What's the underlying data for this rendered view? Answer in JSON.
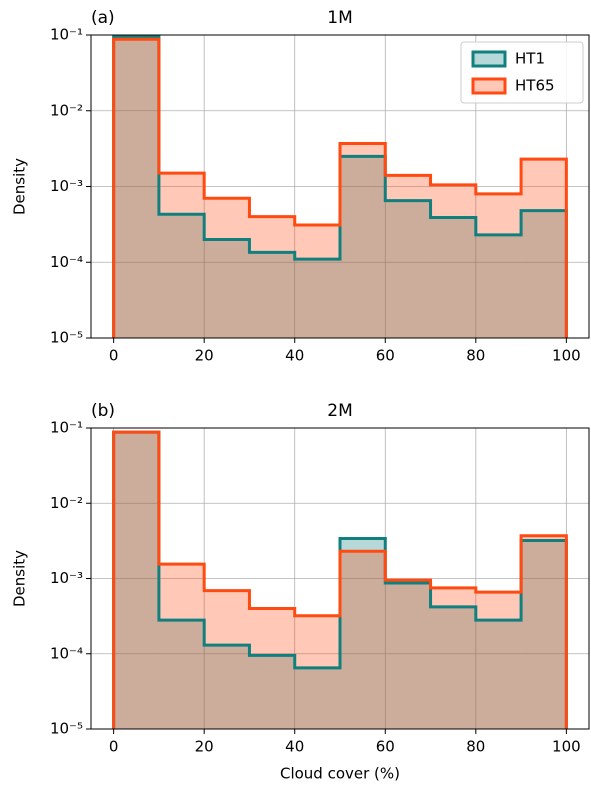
{
  "chart_data": [
    {
      "type": "histogram",
      "title": "1M",
      "annotation": "(a)",
      "ylabel": "Density",
      "bins": [
        0,
        10,
        20,
        30,
        40,
        50,
        60,
        70,
        80,
        90,
        100
      ],
      "series": [
        {
          "name": "HT1",
          "color": "#127f7f",
          "values": [
            0.095,
            0.00043,
            0.0002,
            0.000135,
            0.00011,
            0.0025,
            0.00065,
            0.00039,
            0.00023,
            0.00048
          ]
        },
        {
          "name": "HT65",
          "color": "#ff4a12",
          "values": [
            0.088,
            0.0015,
            0.0007,
            0.0004,
            0.00031,
            0.0037,
            0.0014,
            0.00105,
            0.0008,
            0.0023
          ]
        }
      ],
      "xlim": [
        -5,
        105
      ],
      "xticks": [
        0,
        20,
        40,
        60,
        80,
        100
      ],
      "ylim": [
        1e-05,
        0.1
      ],
      "log_y": true,
      "yticks": [
        {
          "value": 0.1,
          "label": "10⁻¹"
        },
        {
          "value": 0.01,
          "label": "10⁻²"
        },
        {
          "value": 0.001,
          "label": "10⁻³"
        },
        {
          "value": 0.0001,
          "label": "10⁻⁴"
        },
        {
          "value": 1e-05,
          "label": "10⁻⁵"
        }
      ],
      "grid": true,
      "legend": "upper right"
    },
    {
      "type": "histogram",
      "title": "2M",
      "annotation": "(b)",
      "ylabel": "Density",
      "xlabel": "Cloud cover (%)",
      "bins": [
        0,
        10,
        20,
        30,
        40,
        50,
        60,
        70,
        80,
        90,
        100
      ],
      "series": [
        {
          "name": "HT1",
          "color": "#127f7f",
          "values": [
            0.088,
            0.00028,
            0.00013,
            9.5e-05,
            6.5e-05,
            0.0034,
            0.00087,
            0.00042,
            0.00028,
            0.0032
          ]
        },
        {
          "name": "HT65",
          "color": "#ff4a12",
          "values": [
            0.088,
            0.00155,
            0.00069,
            0.0004,
            0.00032,
            0.0023,
            0.00095,
            0.00075,
            0.00066,
            0.0037
          ]
        }
      ],
      "xlim": [
        -5,
        105
      ],
      "xticks": [
        0,
        20,
        40,
        60,
        80,
        100
      ],
      "ylim": [
        1e-05,
        0.1
      ],
      "log_y": true,
      "yticks": [
        {
          "value": 0.1,
          "label": "10⁻¹"
        },
        {
          "value": 0.01,
          "label": "10⁻²"
        },
        {
          "value": 0.001,
          "label": "10⁻³"
        },
        {
          "value": 0.0001,
          "label": "10⁻⁴"
        },
        {
          "value": 1e-05,
          "label": "10⁻⁵"
        }
      ],
      "grid": true
    }
  ]
}
